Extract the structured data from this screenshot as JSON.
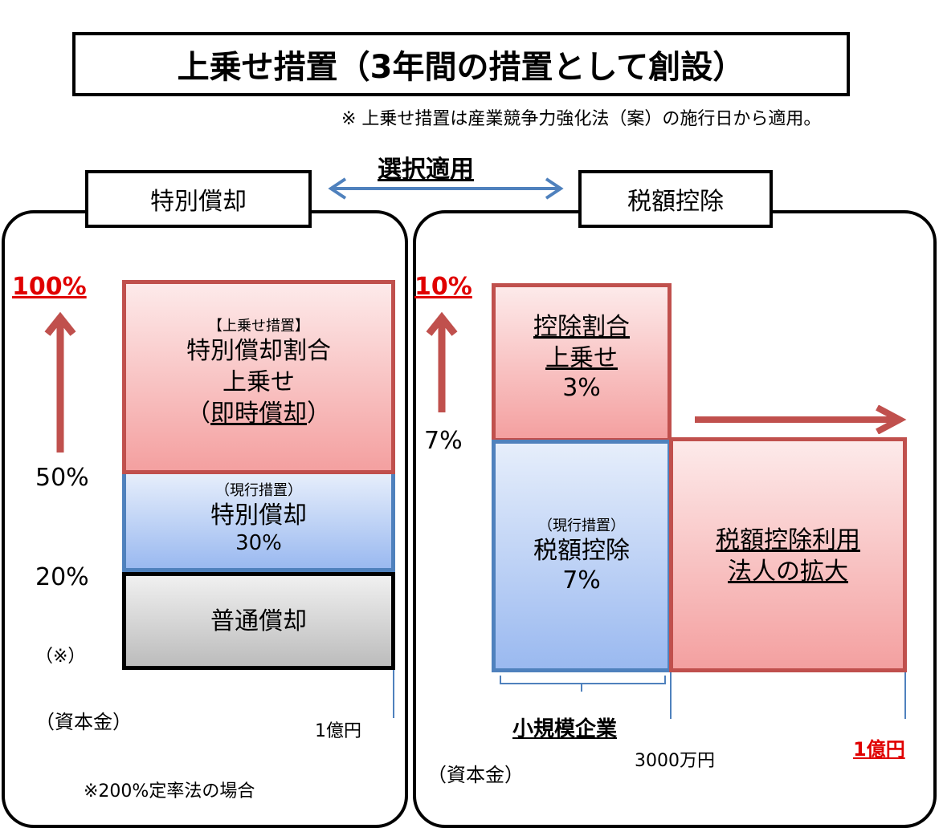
{
  "title": "上乗せ措置（3年間の措置として創設）",
  "note": "※  上乗せ措置は産業競争力強化法（案）の施行日から適用。",
  "selection": "選択適用",
  "left": {
    "label": "特別償却",
    "pct_100": "100%",
    "pct_50": "50%",
    "pct_20": "20%",
    "note_mark": "（※）",
    "capital": "（資本金）",
    "amount": "1億円",
    "footnote": "※200%定率法の場合",
    "red_block": {
      "tag": "【上乗せ措置】",
      "line1": "特別償却割合",
      "line2": "上乗せ",
      "line3": "（即時償却）",
      "line3_inner": "即時償却"
    },
    "blue_block": {
      "tag": "（現行措置）",
      "line1": "特別償却",
      "line2": "30%"
    },
    "gray_block": {
      "line1": "普通償却"
    }
  },
  "right": {
    "label": "税額控除",
    "pct_10": "10%",
    "pct_7": "7%",
    "capital": "（資本金）",
    "small_company": "小規模企業",
    "amount_small": "3000万円",
    "amount_large": "1億円",
    "red_top": {
      "line1": "控除割合",
      "line2": "上乗せ",
      "line3": "3%"
    },
    "blue_block": {
      "tag": "（現行措置）",
      "line1": "税額控除",
      "line2": "7%"
    },
    "red_right": {
      "line1": "税額控除利用",
      "line2": "法人の拡大"
    }
  },
  "colors": {
    "red": "#c0504d",
    "blue": "#4f81bd",
    "accent_red": "#e00000"
  }
}
